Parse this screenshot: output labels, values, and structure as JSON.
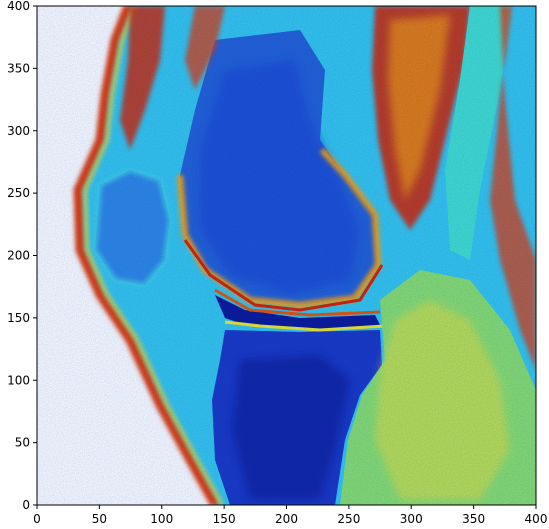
{
  "image": {
    "subject": "mri-knee-sagittal-colormap",
    "colormap": "jet",
    "colors": {
      "background": "#ffffff",
      "deep_blue": "#0a1d9c",
      "blue": "#1f4fd6",
      "mid_blue": "#2f7de6",
      "cyan": "#29c7f0",
      "aqua": "#41e0d2",
      "green": "#7fe08a",
      "yellow": "#f2e83a",
      "orange": "#f59a1c",
      "red": "#d8260f",
      "dark_red": "#8a0c06"
    }
  },
  "axes": {
    "x": {
      "min": 0,
      "max": 400,
      "ticks": [
        0,
        50,
        100,
        150,
        200,
        250,
        300,
        350,
        400
      ],
      "labels": [
        "0",
        "50",
        "100",
        "150",
        "200",
        "250",
        "300",
        "350",
        "400"
      ]
    },
    "y": {
      "min": 0,
      "max": 400,
      "ticks": [
        0,
        50,
        100,
        150,
        200,
        250,
        300,
        350,
        400
      ],
      "labels": [
        "0",
        "50",
        "100",
        "150",
        "200",
        "250",
        "300",
        "350",
        "400"
      ]
    }
  }
}
